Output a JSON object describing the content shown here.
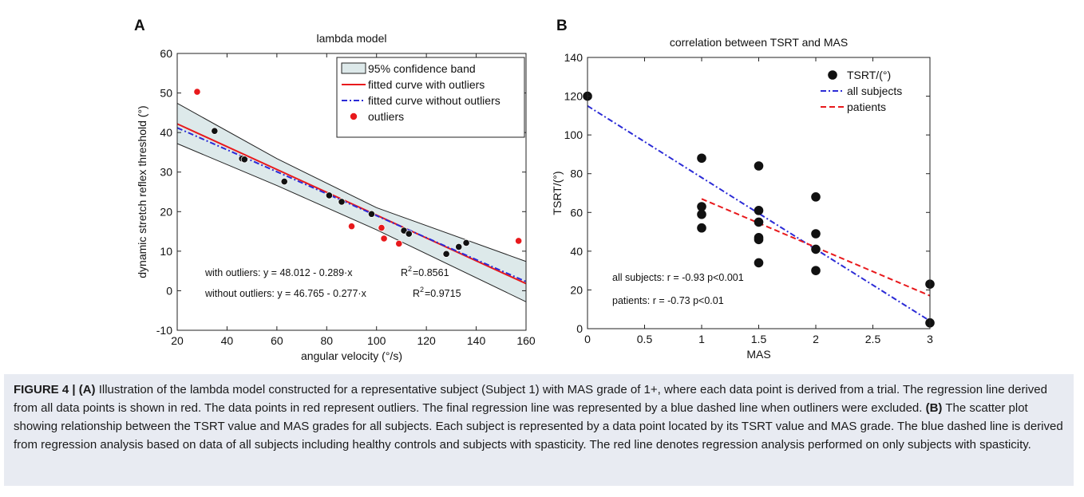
{
  "chart_data": [
    {
      "panel_label": "A",
      "type": "scatter",
      "title": "lambda model",
      "xlabel": "angular velocity (°/s)",
      "ylabel": "dynamic stretch reflex threshold (°)",
      "xlim": [
        20,
        160
      ],
      "ylim": [
        -10,
        60
      ],
      "xticks": [
        20,
        40,
        60,
        80,
        100,
        120,
        140,
        160
      ],
      "yticks": [
        -10,
        0,
        10,
        20,
        30,
        40,
        50,
        60
      ],
      "grid": false,
      "legend_position": "top-right",
      "series": [
        {
          "name": "95% confidence band",
          "kind": "band",
          "color": "#dde9ea",
          "lower": {
            "x": [
              20,
              60,
              100,
              160
            ],
            "y": [
              37.2,
              26.6,
              15.4,
              -2.8
            ]
          },
          "upper": {
            "x": [
              20,
              60,
              100,
              160
            ],
            "y": [
              47.4,
              33.4,
              21.0,
              7.4
            ]
          }
        },
        {
          "name": "fitted curve with outliers",
          "kind": "line",
          "color": "#e8191c",
          "dash": "solid",
          "x": [
            20,
            160
          ],
          "y": [
            42.2,
            1.8
          ]
        },
        {
          "name": "fitted curve without outliers",
          "kind": "line",
          "color": "#2b2bd6",
          "dash": "dashdot",
          "x": [
            20,
            160
          ],
          "y": [
            41.2,
            2.3
          ]
        },
        {
          "name": "outliers",
          "kind": "points",
          "color": "#e8191c",
          "x": [
            28,
            90,
            102,
            103,
            109,
            157
          ],
          "y": [
            50.3,
            16.3,
            15.9,
            13.2,
            11.9,
            12.6
          ]
        },
        {
          "name": "",
          "kind": "points",
          "color": "#111111",
          "x": [
            35,
            46,
            47,
            63,
            81,
            86,
            98,
            111,
            113,
            128,
            133,
            136
          ],
          "y": [
            40.4,
            33.4,
            33.2,
            27.6,
            24.1,
            22.5,
            19.4,
            15.2,
            14.4,
            9.3,
            11.1,
            12.1
          ]
        }
      ],
      "annotations": [
        {
          "text": "with outliers: y = 48.012 - 0.289·x",
          "r2_label": "R",
          "r2_sup": "2",
          "r2_value": "=0.8561"
        },
        {
          "text": "without outliers: y = 46.765 - 0.277·x",
          "r2_label": "R",
          "r2_sup": "2",
          "r2_value": "=0.9715"
        }
      ]
    },
    {
      "panel_label": "B",
      "type": "scatter",
      "title": "correlation between TSRT and MAS",
      "xlabel": "MAS",
      "ylabel": "TSRT/(°)",
      "xlim": [
        0,
        3
      ],
      "ylim": [
        0,
        140
      ],
      "xticks": [
        "0",
        "0.5",
        "1",
        "1.5",
        "2",
        "2.5",
        "3"
      ],
      "yticks": [
        "0",
        "20",
        "40",
        "60",
        "80",
        "100",
        "120",
        "140"
      ],
      "grid": false,
      "legend_position": "top-right",
      "series": [
        {
          "name": "TSRT/(°)",
          "kind": "points",
          "color": "#111111",
          "x": [
            0,
            1,
            1,
            1,
            1,
            1.5,
            1.5,
            1.5,
            1.5,
            1.5,
            1.5,
            2,
            2,
            2,
            2,
            3,
            3
          ],
          "y": [
            120,
            88,
            63,
            59,
            52,
            84,
            61,
            55,
            47,
            46,
            34,
            68,
            49,
            41,
            30,
            23,
            3
          ]
        },
        {
          "name": "all subjects",
          "kind": "line",
          "color": "#2b2bd6",
          "dash": "dashdot",
          "x": [
            0,
            3
          ],
          "y": [
            115,
            4
          ]
        },
        {
          "name": "patients",
          "kind": "line",
          "color": "#e8191c",
          "dash": "dashed",
          "x": [
            1,
            3
          ],
          "y": [
            67,
            17
          ]
        }
      ],
      "annotations": [
        {
          "text": "all subjects:  r = -0.93  p<0.001"
        },
        {
          "text": "patients:  r = -0.73  p<0.01"
        }
      ]
    }
  ],
  "caption": {
    "figure_label": "FIGURE 4 | (A)",
    "text_a": " Illustration of the lambda model constructed for a representative subject (Subject 1) with MAS grade of 1+, where each data point is derived from a trial. The regression line derived from all data points is shown in red. The data points in red represent outliers. The final regression line was represented by a blue dashed line when outliners were excluded. ",
    "label_b": "(B)",
    "text_b": " The scatter plot showing relationship between the TSRT value and MAS grades for all subjects. Each subject is represented by a data point located by its TSRT value and MAS grade. The blue dashed line is derived from regression analysis based on data of all subjects including healthy controls and subjects with spasticity. The red line denotes regression analysis performed on only subjects with spasticity."
  }
}
